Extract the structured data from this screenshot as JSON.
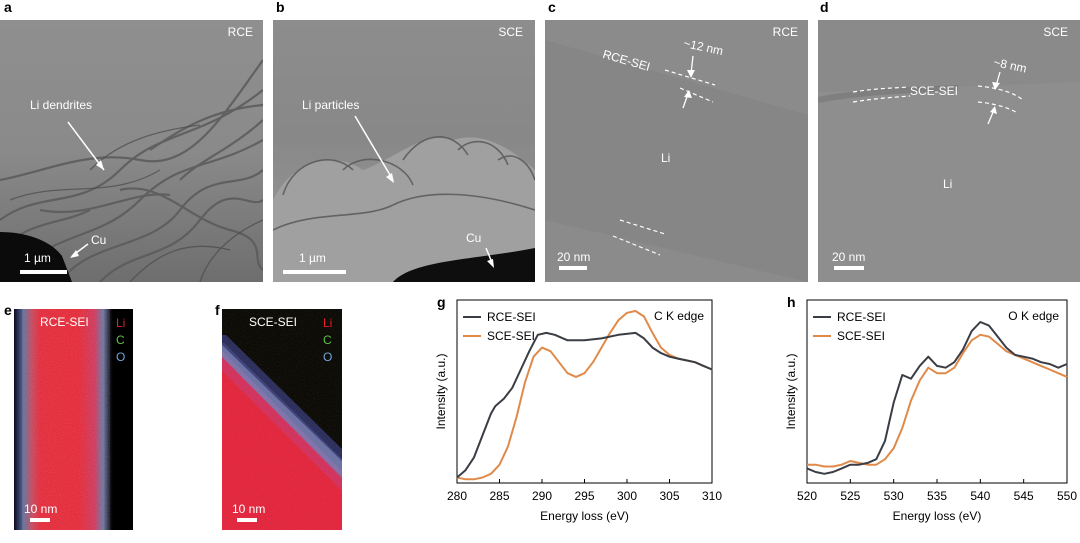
{
  "panels": {
    "a": {
      "letter": "a",
      "corner": "RCE",
      "annotation": "Li dendrites",
      "label2": "Cu",
      "scale": "1 µm"
    },
    "b": {
      "letter": "b",
      "corner": "SCE",
      "annotation": "Li particles",
      "label2": "Cu",
      "scale": "1 µm"
    },
    "c": {
      "letter": "c",
      "corner": "RCE",
      "sei_label": "RCE-SEI",
      "thickness": "~12 nm",
      "bulk": "Li",
      "scale": "20 nm"
    },
    "d": {
      "letter": "d",
      "corner": "SCE",
      "sei_label": "SCE-SEI",
      "thickness": "~8 nm",
      "bulk": "Li",
      "scale": "20 nm"
    },
    "e": {
      "letter": "e",
      "title": "RCE-SEI",
      "legend": [
        "Li",
        "C",
        "O"
      ],
      "scale": "10 nm"
    },
    "f": {
      "letter": "f",
      "title": "SCE-SEI",
      "legend": [
        "Li",
        "C",
        "O"
      ],
      "scale": "10 nm"
    },
    "g": {
      "letter": "g"
    },
    "h": {
      "letter": "h"
    }
  },
  "colors": {
    "rce": "#3a3d44",
    "sce": "#e08a4a",
    "li": "#e8202a",
    "c": "#5fc04a",
    "o": "#6fa8d8"
  },
  "chart_data": [
    {
      "type": "line",
      "title": "C K edge",
      "xlabel": "Energy loss (eV)",
      "ylabel": "Intensity (a.u.)",
      "xlim": [
        280,
        310
      ],
      "ylim": [
        0,
        1
      ],
      "xticks": [
        280,
        285,
        290,
        295,
        300,
        305,
        310
      ],
      "legend_position": "top-left",
      "series": [
        {
          "name": "RCE-SEI",
          "color": "#3a3d44",
          "x": [
            280,
            281,
            282,
            283,
            284,
            284.5,
            285.5,
            286.5,
            287.5,
            288.5,
            289.5,
            290.5,
            291.5,
            293,
            295,
            297,
            299,
            301,
            302,
            303,
            304,
            305,
            306,
            307,
            308,
            309,
            310
          ],
          "y": [
            0.03,
            0.07,
            0.14,
            0.26,
            0.38,
            0.42,
            0.46,
            0.52,
            0.62,
            0.72,
            0.81,
            0.82,
            0.81,
            0.78,
            0.78,
            0.79,
            0.81,
            0.82,
            0.79,
            0.74,
            0.71,
            0.69,
            0.68,
            0.67,
            0.66,
            0.64,
            0.62
          ]
        },
        {
          "name": "SCE-SEI",
          "color": "#e08a4a",
          "x": [
            280,
            281,
            282,
            283,
            284,
            285,
            286,
            287,
            288,
            289,
            290,
            291,
            292,
            293,
            294,
            295,
            296,
            297,
            298,
            299,
            300,
            301,
            302,
            303,
            304,
            305,
            306,
            307,
            308,
            309,
            310
          ],
          "y": [
            0.03,
            0.02,
            0.02,
            0.03,
            0.05,
            0.1,
            0.2,
            0.36,
            0.55,
            0.69,
            0.74,
            0.72,
            0.66,
            0.6,
            0.58,
            0.6,
            0.66,
            0.74,
            0.82,
            0.89,
            0.93,
            0.94,
            0.91,
            0.82,
            0.74,
            0.7,
            0.68,
            0.67,
            0.66,
            0.64,
            0.62
          ]
        }
      ]
    },
    {
      "type": "line",
      "title": "O K edge",
      "xlabel": "Energy loss (eV)",
      "ylabel": "Intensity (a.u.)",
      "xlim": [
        520,
        550
      ],
      "ylim": [
        0,
        1
      ],
      "xticks": [
        520,
        525,
        530,
        535,
        540,
        545,
        550
      ],
      "legend_position": "top-left",
      "series": [
        {
          "name": "RCE-SEI",
          "color": "#3a3d44",
          "x": [
            520,
            521,
            522,
            523,
            524,
            525,
            526,
            527,
            528,
            529,
            530,
            531,
            532,
            533,
            534,
            535,
            536,
            537,
            538,
            539,
            540,
            541,
            542,
            543,
            544,
            545,
            546,
            547,
            548,
            549,
            550
          ],
          "y": [
            0.08,
            0.06,
            0.05,
            0.06,
            0.08,
            0.1,
            0.1,
            0.11,
            0.13,
            0.23,
            0.44,
            0.59,
            0.57,
            0.64,
            0.69,
            0.64,
            0.63,
            0.66,
            0.73,
            0.83,
            0.88,
            0.86,
            0.8,
            0.74,
            0.7,
            0.69,
            0.68,
            0.66,
            0.65,
            0.63,
            0.65
          ]
        },
        {
          "name": "SCE-SEI",
          "color": "#e08a4a",
          "x": [
            520,
            521,
            522,
            523,
            524,
            525,
            526,
            527,
            528,
            529,
            530,
            531,
            532,
            533,
            534,
            535,
            536,
            537,
            538,
            539,
            540,
            541,
            542,
            543,
            544,
            545,
            546,
            547,
            548,
            549,
            550
          ],
          "y": [
            0.1,
            0.1,
            0.09,
            0.09,
            0.1,
            0.12,
            0.11,
            0.1,
            0.1,
            0.13,
            0.19,
            0.3,
            0.45,
            0.56,
            0.63,
            0.6,
            0.6,
            0.63,
            0.71,
            0.78,
            0.81,
            0.8,
            0.76,
            0.72,
            0.7,
            0.68,
            0.66,
            0.64,
            0.62,
            0.6,
            0.58
          ]
        }
      ]
    }
  ]
}
